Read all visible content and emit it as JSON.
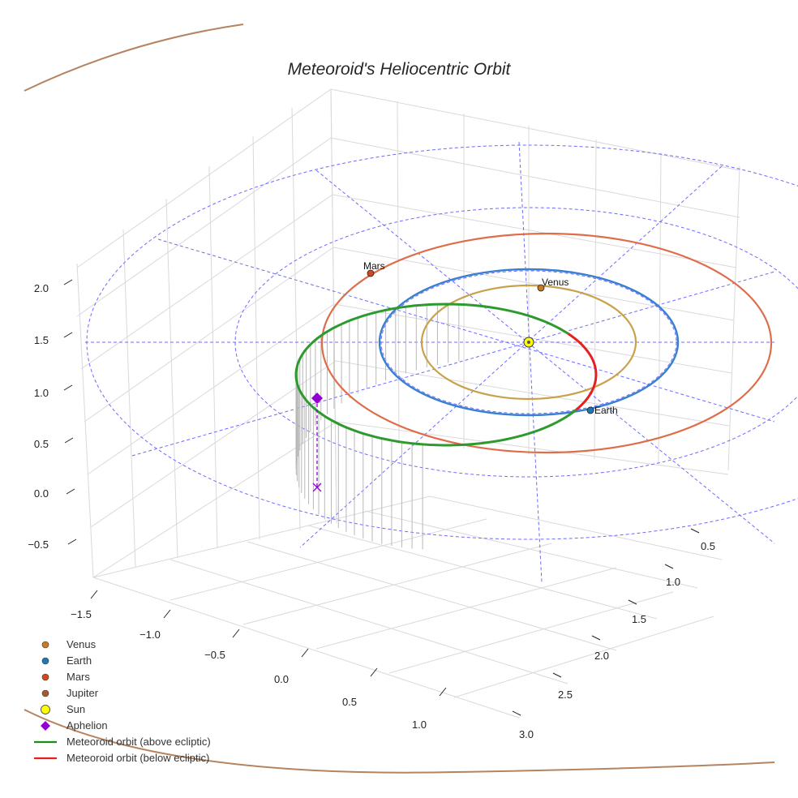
{
  "title": "Meteoroid's Heliocentric Orbit",
  "colors": {
    "venus": "#c9a14a",
    "earth": "#3a7fd0",
    "mars": "#de6e4b",
    "jupiter": "#b5835f",
    "sun": "#ffff00",
    "aphelion": "#9400d3",
    "orbit_above": "#2e9a2e",
    "orbit_below": "#e62020",
    "ecliptic_grid": "#6b6bff",
    "drop_lines": "#b8b8b8"
  },
  "chart_data": {
    "type": "scatter",
    "projection": "3d",
    "title": "Meteoroid's Heliocentric Orbit",
    "x_ticks": [
      -1.5,
      -1.0,
      -0.5,
      0.0,
      0.5,
      1.0
    ],
    "x_tick_labels": [
      "−1.5",
      "−1.0",
      "−0.5",
      "0.0",
      "0.5",
      "1.0"
    ],
    "y_ticks": [
      0.5,
      1.0,
      1.5,
      2.0,
      2.5,
      3.0
    ],
    "y_tick_labels": [
      "0.5",
      "1.0",
      "1.5",
      "2.0",
      "2.5",
      "3.0"
    ],
    "z_ticks": [
      -0.5,
      0.0,
      0.5,
      1.0,
      1.5,
      2.0
    ],
    "z_tick_labels": [
      "−0.5",
      "0.0",
      "0.5",
      "1.0",
      "1.5",
      "2.0"
    ],
    "planets": [
      {
        "name": "Venus",
        "orbit_radius_au": 0.72,
        "label": "Venus"
      },
      {
        "name": "Earth",
        "orbit_radius_au": 1.0,
        "label": "Earth"
      },
      {
        "name": "Mars",
        "orbit_radius_au": 1.52,
        "label": "Mars"
      },
      {
        "name": "Jupiter",
        "orbit_radius_au": 5.2,
        "label": ""
      }
    ],
    "sun": {
      "x": 0,
      "y": 0,
      "z": 0
    },
    "meteoroid_orbit": {
      "perihelion_au": 0.85,
      "aphelion_au": 2.05,
      "segments": [
        "above ecliptic",
        "below ecliptic"
      ]
    },
    "aphelion_marker": {
      "label": "Aphelion",
      "height_z": 1.0
    },
    "ecliptic_reference_circles_au": [
      2.0,
      3.0
    ],
    "legend": [
      {
        "label": "Venus",
        "marker": "circle",
        "color": "#c87a25"
      },
      {
        "label": "Earth",
        "marker": "circle",
        "color": "#1f77b4"
      },
      {
        "label": "Mars",
        "marker": "circle",
        "color": "#d2491c"
      },
      {
        "label": "Jupiter",
        "marker": "circle",
        "color": "#a9592e"
      },
      {
        "label": "Sun",
        "marker": "circle-large",
        "color": "#ffff00"
      },
      {
        "label": "Aphelion",
        "marker": "diamond",
        "color": "#9400d3"
      },
      {
        "label": "Meteoroid orbit (above ecliptic)",
        "marker": "line",
        "color": "#1a8c1a"
      },
      {
        "label": "Meteoroid orbit (below ecliptic)",
        "marker": "line",
        "color": "#e62020"
      }
    ]
  }
}
